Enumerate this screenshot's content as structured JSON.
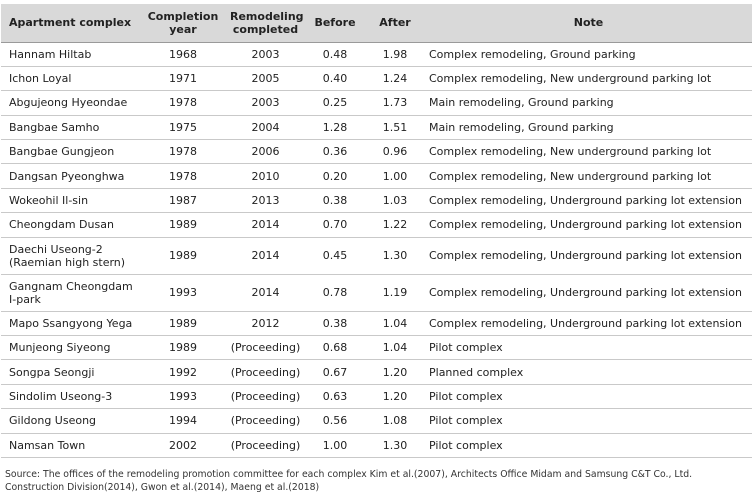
{
  "table": {
    "headers": [
      "Apartment complex",
      "Completion year",
      "Remodeling completed",
      "Before",
      "After",
      "Note"
    ],
    "rows": [
      [
        "Hannam Hiltab",
        "1968",
        "2003",
        "0.48",
        "1.98",
        "Complex remodeling, Ground parking"
      ],
      [
        "Ichon Loyal",
        "1971",
        "2005",
        "0.40",
        "1.24",
        "Complex remodeling, New underground parking lot"
      ],
      [
        "Abgujeong Hyeondae",
        "1978",
        "2003",
        "0.25",
        "1.73",
        "Main remodeling, Ground parking"
      ],
      [
        "Bangbae Samho",
        "1975",
        "2004",
        "1.28",
        "1.51",
        "Main remodeling, Ground parking"
      ],
      [
        "Bangbae Gungjeon",
        "1978",
        "2006",
        "0.36",
        "0.96",
        "Complex remodeling, New underground parking lot"
      ],
      [
        "Dangsan Pyeonghwa",
        "1978",
        "2010",
        "0.20",
        "1.00",
        "Complex remodeling, New underground parking lot"
      ],
      [
        "Wokeohil Il-sin",
        "1987",
        "2013",
        "0.38",
        "1.03",
        "Complex remodeling, Underground parking lot extension"
      ],
      [
        "Cheongdam Dusan",
        "1989",
        "2014",
        "0.70",
        "1.22",
        "Complex remodeling, Underground parking lot extension"
      ],
      [
        "Daechi Useong-2 (Raemian high stern)",
        "1989",
        "2014",
        "0.45",
        "1.30",
        "Complex remodeling, Underground parking lot extension"
      ],
      [
        "Gangnam Cheongdam I-park",
        "1993",
        "2014",
        "0.78",
        "1.19",
        "Complex remodeling, Underground parking lot extension"
      ],
      [
        "Mapo Ssangyong Yega",
        "1989",
        "2012",
        "0.38",
        "1.04",
        "Complex remodeling, Underground parking lot extension"
      ],
      [
        "Munjeong Siyeong",
        "1989",
        "(Proceeding)",
        "0.68",
        "1.04",
        "Pilot complex"
      ],
      [
        "Songpa Seongji",
        "1992",
        "(Proceeding)",
        "0.67",
        "1.20",
        "Planned complex"
      ],
      [
        "Sindolim Useong-3",
        "1993",
        "(Proceeding)",
        "0.63",
        "1.20",
        "Pilot complex"
      ],
      [
        "Gildong Useong",
        "1994",
        "(Proceeding)",
        "0.56",
        "1.08",
        "Pilot complex"
      ],
      [
        "Namsan Town",
        "2002",
        "(Proceeding)",
        "1.00",
        "1.30",
        "Pilot complex"
      ]
    ]
  },
  "source": "Source: The offices of the remodeling promotion committee for each complex Kim et al.(2007), Architects Office Midam and Samsung C&T Co., Ltd. Construction Division(2014), Gwon et al.(2014), Maeng et al.(2018)",
  "colors": {
    "header_bg": "#d9d9d9",
    "row_line": "#c9c9c9"
  }
}
